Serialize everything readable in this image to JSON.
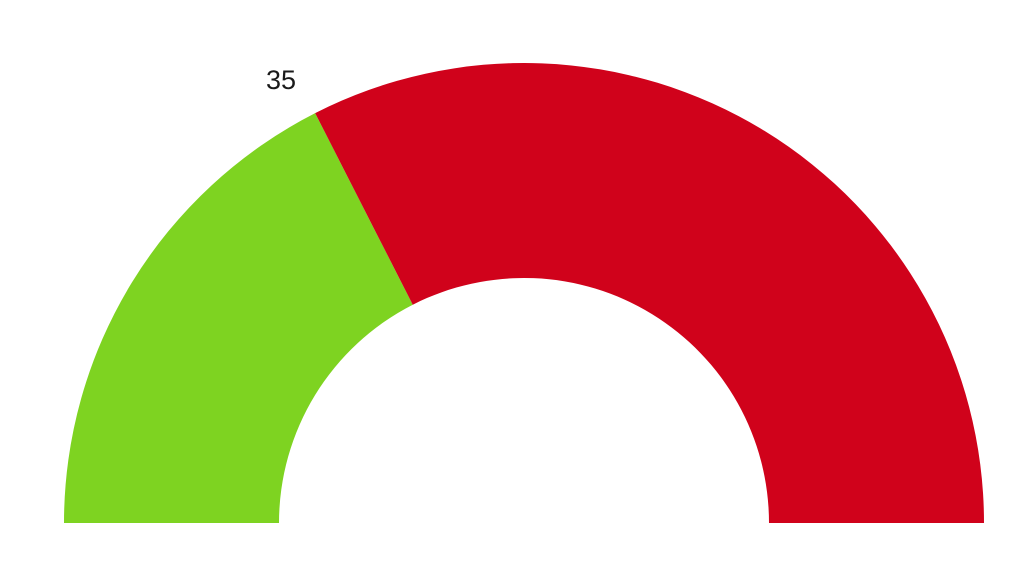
{
  "chart_data": {
    "type": "gauge",
    "min": 0,
    "max": 100,
    "value": 35,
    "value_label": "35",
    "series": [
      {
        "value": 35,
        "color": "#7ed321"
      },
      {
        "value": 65,
        "color": "#d0021b"
      }
    ],
    "grid": false,
    "legend": "none"
  }
}
